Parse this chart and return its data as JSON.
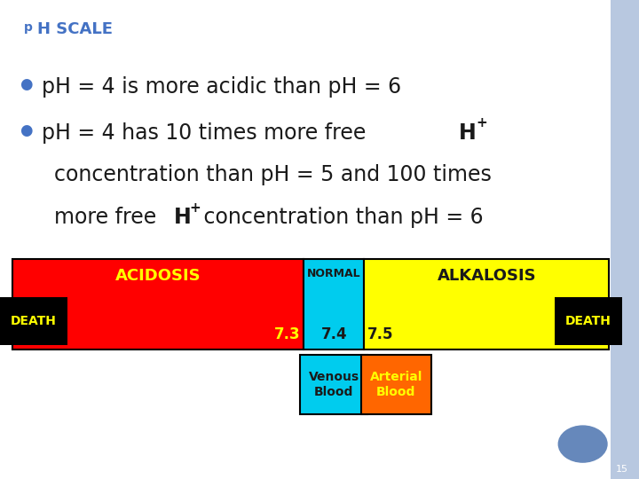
{
  "bg_color": "#ffffff",
  "right_border_color": "#b8c8e0",
  "title_p": "p",
  "title_h": "H SCALE",
  "title_p_color": "#4472c4",
  "title_h_color": "#4472c4",
  "title_fontsize": 13,
  "title_p_fontsize": 10,
  "bullet_color": "#4472c4",
  "text_color": "#1a1a1a",
  "line1": "pH = 4 is more acidic than pH = 6",
  "line2a": "pH = 4 has 10 times more free ",
  "line3": "concentration than pH = 5 and 100 times",
  "line4a": "more free ",
  "line4c": " concentration than pH = 6",
  "acidosis_color": "#ff0000",
  "acidosis_label": "ACIDOSIS",
  "acidosis_label_color": "#ffff00",
  "normal_color": "#00ccee",
  "normal_label": "NORMAL",
  "normal_label_color": "#1a1a1a",
  "alkalosis_color": "#ffff00",
  "alkalosis_label": "ALKALOSIS",
  "alkalosis_label_color": "#1a1a1a",
  "death_color": "#000000",
  "death_label_color": "#ffff00",
  "venous_color": "#00ccee",
  "arterial_color": "#ff6600",
  "arterial_label_color": "#ffff00",
  "circle_color": "#6688bb",
  "page_num": "15"
}
